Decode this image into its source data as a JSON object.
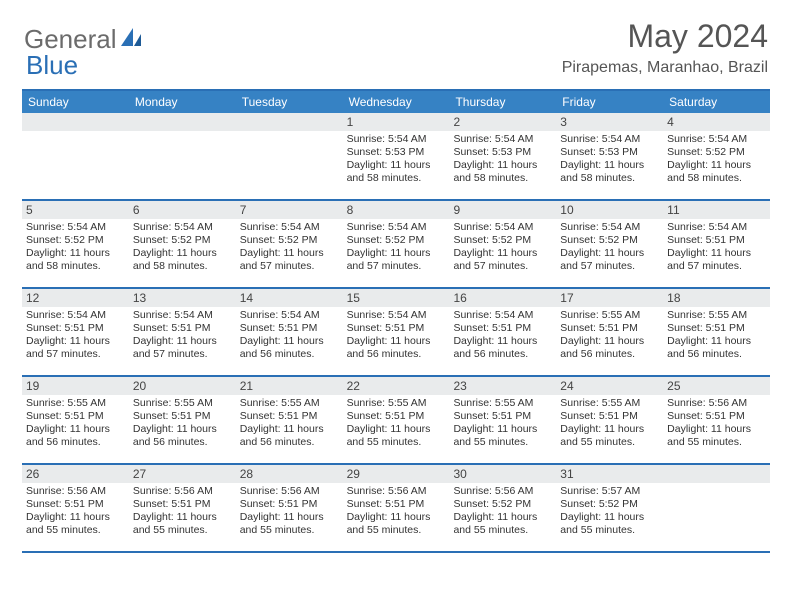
{
  "logo": {
    "text_general": "General",
    "text_blue": "Blue"
  },
  "title": "May 2024",
  "location": "Pirapemas, Maranhao, Brazil",
  "day_headers": [
    "Sunday",
    "Monday",
    "Tuesday",
    "Wednesday",
    "Thursday",
    "Friday",
    "Saturday"
  ],
  "colors": {
    "header_bg": "#3682c4",
    "border": "#2a6fb5",
    "daynum_bg": "#e9ebec",
    "text": "#333333",
    "title_text": "#555555"
  },
  "weeks": [
    [
      {
        "num": "",
        "empty": true
      },
      {
        "num": "",
        "empty": true
      },
      {
        "num": "",
        "empty": true
      },
      {
        "num": "1",
        "sunrise": "5:54 AM",
        "sunset": "5:53 PM",
        "daylight_h": "11",
        "daylight_m": "58"
      },
      {
        "num": "2",
        "sunrise": "5:54 AM",
        "sunset": "5:53 PM",
        "daylight_h": "11",
        "daylight_m": "58"
      },
      {
        "num": "3",
        "sunrise": "5:54 AM",
        "sunset": "5:53 PM",
        "daylight_h": "11",
        "daylight_m": "58"
      },
      {
        "num": "4",
        "sunrise": "5:54 AM",
        "sunset": "5:52 PM",
        "daylight_h": "11",
        "daylight_m": "58"
      }
    ],
    [
      {
        "num": "5",
        "sunrise": "5:54 AM",
        "sunset": "5:52 PM",
        "daylight_h": "11",
        "daylight_m": "58"
      },
      {
        "num": "6",
        "sunrise": "5:54 AM",
        "sunset": "5:52 PM",
        "daylight_h": "11",
        "daylight_m": "58"
      },
      {
        "num": "7",
        "sunrise": "5:54 AM",
        "sunset": "5:52 PM",
        "daylight_h": "11",
        "daylight_m": "57"
      },
      {
        "num": "8",
        "sunrise": "5:54 AM",
        "sunset": "5:52 PM",
        "daylight_h": "11",
        "daylight_m": "57"
      },
      {
        "num": "9",
        "sunrise": "5:54 AM",
        "sunset": "5:52 PM",
        "daylight_h": "11",
        "daylight_m": "57"
      },
      {
        "num": "10",
        "sunrise": "5:54 AM",
        "sunset": "5:52 PM",
        "daylight_h": "11",
        "daylight_m": "57"
      },
      {
        "num": "11",
        "sunrise": "5:54 AM",
        "sunset": "5:51 PM",
        "daylight_h": "11",
        "daylight_m": "57"
      }
    ],
    [
      {
        "num": "12",
        "sunrise": "5:54 AM",
        "sunset": "5:51 PM",
        "daylight_h": "11",
        "daylight_m": "57"
      },
      {
        "num": "13",
        "sunrise": "5:54 AM",
        "sunset": "5:51 PM",
        "daylight_h": "11",
        "daylight_m": "57"
      },
      {
        "num": "14",
        "sunrise": "5:54 AM",
        "sunset": "5:51 PM",
        "daylight_h": "11",
        "daylight_m": "56"
      },
      {
        "num": "15",
        "sunrise": "5:54 AM",
        "sunset": "5:51 PM",
        "daylight_h": "11",
        "daylight_m": "56"
      },
      {
        "num": "16",
        "sunrise": "5:54 AM",
        "sunset": "5:51 PM",
        "daylight_h": "11",
        "daylight_m": "56"
      },
      {
        "num": "17",
        "sunrise": "5:55 AM",
        "sunset": "5:51 PM",
        "daylight_h": "11",
        "daylight_m": "56"
      },
      {
        "num": "18",
        "sunrise": "5:55 AM",
        "sunset": "5:51 PM",
        "daylight_h": "11",
        "daylight_m": "56"
      }
    ],
    [
      {
        "num": "19",
        "sunrise": "5:55 AM",
        "sunset": "5:51 PM",
        "daylight_h": "11",
        "daylight_m": "56"
      },
      {
        "num": "20",
        "sunrise": "5:55 AM",
        "sunset": "5:51 PM",
        "daylight_h": "11",
        "daylight_m": "56"
      },
      {
        "num": "21",
        "sunrise": "5:55 AM",
        "sunset": "5:51 PM",
        "daylight_h": "11",
        "daylight_m": "56"
      },
      {
        "num": "22",
        "sunrise": "5:55 AM",
        "sunset": "5:51 PM",
        "daylight_h": "11",
        "daylight_m": "55"
      },
      {
        "num": "23",
        "sunrise": "5:55 AM",
        "sunset": "5:51 PM",
        "daylight_h": "11",
        "daylight_m": "55"
      },
      {
        "num": "24",
        "sunrise": "5:55 AM",
        "sunset": "5:51 PM",
        "daylight_h": "11",
        "daylight_m": "55"
      },
      {
        "num": "25",
        "sunrise": "5:56 AM",
        "sunset": "5:51 PM",
        "daylight_h": "11",
        "daylight_m": "55"
      }
    ],
    [
      {
        "num": "26",
        "sunrise": "5:56 AM",
        "sunset": "5:51 PM",
        "daylight_h": "11",
        "daylight_m": "55"
      },
      {
        "num": "27",
        "sunrise": "5:56 AM",
        "sunset": "5:51 PM",
        "daylight_h": "11",
        "daylight_m": "55"
      },
      {
        "num": "28",
        "sunrise": "5:56 AM",
        "sunset": "5:51 PM",
        "daylight_h": "11",
        "daylight_m": "55"
      },
      {
        "num": "29",
        "sunrise": "5:56 AM",
        "sunset": "5:51 PM",
        "daylight_h": "11",
        "daylight_m": "55"
      },
      {
        "num": "30",
        "sunrise": "5:56 AM",
        "sunset": "5:52 PM",
        "daylight_h": "11",
        "daylight_m": "55"
      },
      {
        "num": "31",
        "sunrise": "5:57 AM",
        "sunset": "5:52 PM",
        "daylight_h": "11",
        "daylight_m": "55"
      },
      {
        "num": "",
        "empty": true
      }
    ]
  ],
  "labels": {
    "sunrise_prefix": "Sunrise: ",
    "sunset_prefix": "Sunset: ",
    "daylight_prefix": "Daylight: ",
    "hours_word": " hours",
    "and_word": "and ",
    "minutes_word": " minutes."
  }
}
